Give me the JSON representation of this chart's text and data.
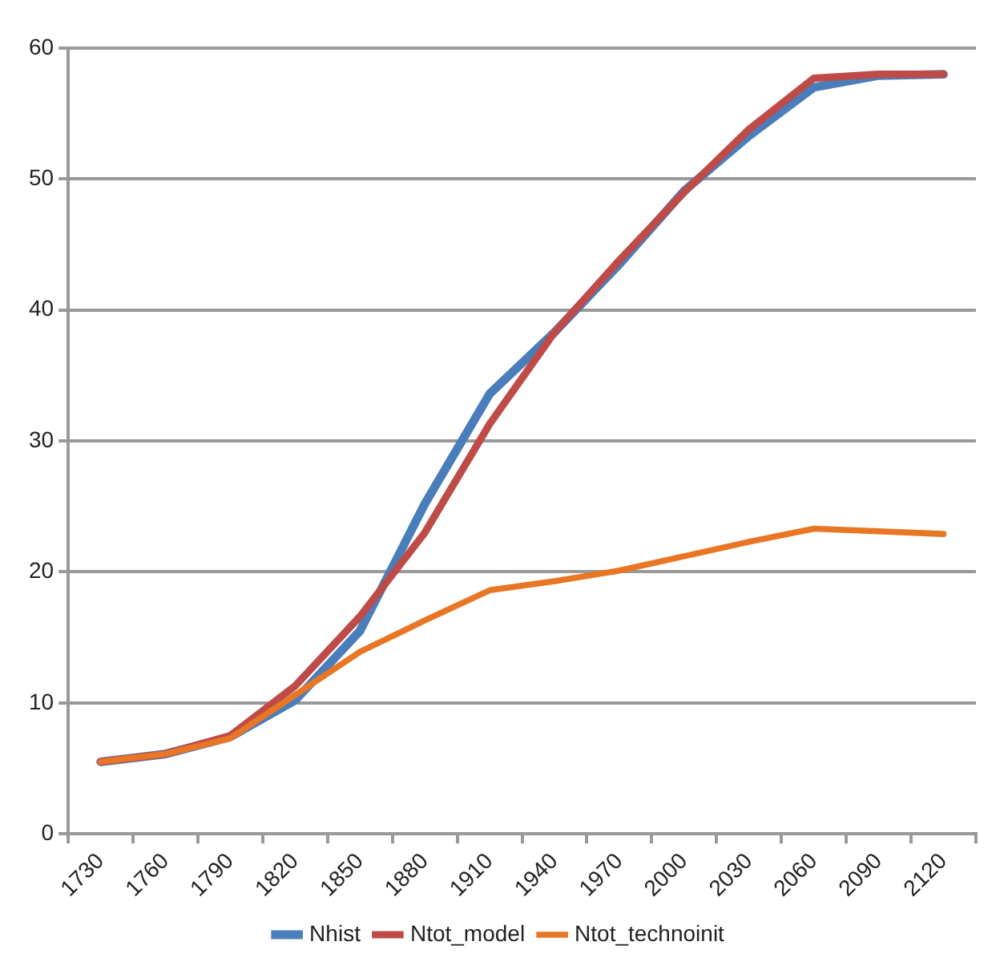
{
  "chart_data": {
    "type": "line",
    "categories": [
      "1730",
      "1760",
      "1790",
      "1820",
      "1850",
      "1880",
      "1910",
      "1940",
      "1970",
      "2000",
      "2030",
      "2060",
      "2090",
      "2120"
    ],
    "series": [
      {
        "name": "Nhist",
        "color": "#4a7ebb",
        "values": [
          5.5,
          6.1,
          7.4,
          10.2,
          15.5,
          25.2,
          33.6,
          38.3,
          43.5,
          49.1,
          53.3,
          57,
          57.9,
          58
        ]
      },
      {
        "name": "Ntot_model",
        "color": "#be4b48",
        "values": [
          5.5,
          6.1,
          7.5,
          11.3,
          16.6,
          23,
          31.3,
          38.3,
          43.8,
          49,
          53.8,
          57.7,
          58,
          58
        ]
      },
      {
        "name": "Ntot_technoinit",
        "color": "#e87624",
        "values": [
          5.5,
          6.1,
          7.3,
          10.6,
          13.9,
          16.3,
          18.6,
          19.3,
          20.1,
          21.2,
          22.3,
          23.3,
          23.1,
          22.9
        ]
      }
    ],
    "ylim": [
      0,
      60
    ],
    "yticks": [
      0,
      10,
      20,
      30,
      40,
      50,
      60
    ],
    "grid": "y",
    "legend": "bottom",
    "marker": "none",
    "line_style": "solid"
  }
}
